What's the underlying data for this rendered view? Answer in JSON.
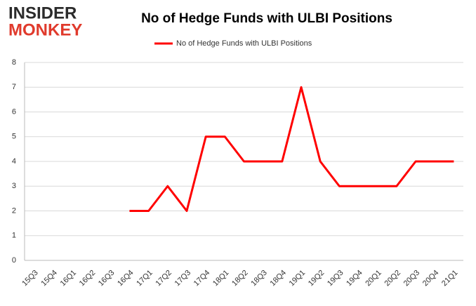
{
  "logo": {
    "line1": "INSIDER",
    "line2": "MONKEY"
  },
  "chart_data": {
    "type": "line",
    "title": "No of Hedge Funds with ULBI Positions",
    "categories": [
      "15Q3",
      "15Q4",
      "16Q1",
      "16Q2",
      "16Q3",
      "16Q4",
      "17Q1",
      "17Q2",
      "17Q3",
      "17Q4",
      "18Q1",
      "18Q2",
      "18Q3",
      "18Q4",
      "19Q1",
      "19Q2",
      "19Q3",
      "19Q4",
      "20Q1",
      "20Q2",
      "20Q3",
      "20Q4",
      "21Q1"
    ],
    "series": [
      {
        "name": "No of Hedge Funds with ULBI Positions",
        "color": "#ff0000",
        "values": [
          null,
          null,
          null,
          null,
          null,
          2,
          2,
          3,
          2,
          5,
          5,
          4,
          4,
          4,
          7,
          4,
          3,
          3,
          3,
          3,
          4,
          4,
          4
        ]
      }
    ],
    "ylim": [
      0,
      8
    ],
    "yticks": [
      0,
      1,
      2,
      3,
      4,
      5,
      6,
      7,
      8
    ],
    "grid": true,
    "legend": "top"
  }
}
